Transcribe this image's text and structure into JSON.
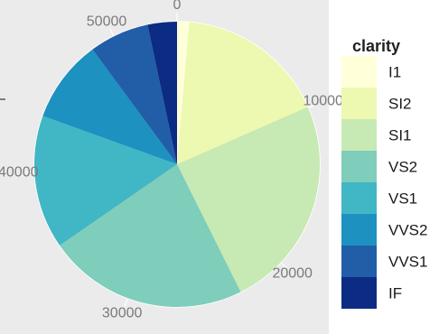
{
  "chart_data": {
    "type": "pie",
    "variant": "polar-coord stacked bar (cumulative count axis around the circle)",
    "legend_title": "clarity",
    "legend_position": "right",
    "categories": [
      "I1",
      "SI2",
      "SI1",
      "VS2",
      "VS1",
      "VVS2",
      "VVS1",
      "IF"
    ],
    "values": [
      741,
      9194,
      13065,
      12258,
      8171,
      5066,
      3655,
      1790
    ],
    "colors": [
      "#FFFFD9",
      "#EDF8B1",
      "#C7E9B4",
      "#7FCDBB",
      "#41B6C4",
      "#1D91C0",
      "#225EA8",
      "#0C2C84"
    ],
    "axis_ticks": [
      "0",
      "10000",
      "20000",
      "30000",
      "40000",
      "50000"
    ],
    "axis_tick_values": [
      0,
      10000,
      20000,
      30000,
      40000,
      50000
    ],
    "axis_max": 53940,
    "panel_background": "#EBEBEB",
    "grid_color": "#FFFFFF"
  }
}
